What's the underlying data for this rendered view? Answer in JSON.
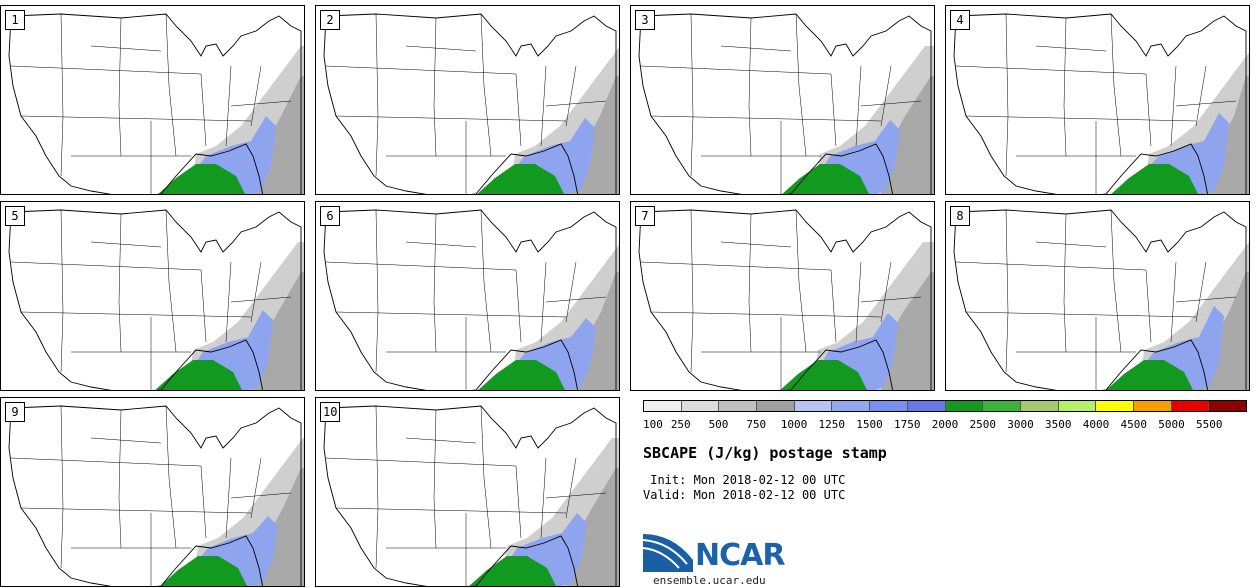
{
  "panels": [
    {
      "label": "1"
    },
    {
      "label": "2"
    },
    {
      "label": "3"
    },
    {
      "label": "4"
    },
    {
      "label": "5"
    },
    {
      "label": "6"
    },
    {
      "label": "7"
    },
    {
      "label": "8"
    },
    {
      "label": "9"
    },
    {
      "label": "10"
    }
  ],
  "legend": {
    "colors": [
      "#f0f0f0",
      "#dcdcdc",
      "#c0c0c0",
      "#a0a0a0",
      "#b4c4f4",
      "#90a8f0",
      "#7890f0",
      "#6878e8",
      "#129a20",
      "#3cb43c",
      "#a8c870",
      "#b4f068",
      "#ffff00",
      "#f5a000",
      "#e80000",
      "#8c0000"
    ],
    "ticks": [
      "100",
      "250",
      "500",
      "750",
      "1000",
      "1250",
      "1500",
      "1750",
      "2000",
      "2500",
      "3000",
      "3500",
      "4000",
      "4500",
      "5000",
      "5500"
    ]
  },
  "title": "SBCAPE (J/kg) postage stamp",
  "init": " Init: Mon 2018-02-12 00 UTC",
  "valid": "Valid: Mon 2018-02-12 00 UTC",
  "logo": {
    "text": "NCAR",
    "url": "ensemble.ucar.edu"
  }
}
